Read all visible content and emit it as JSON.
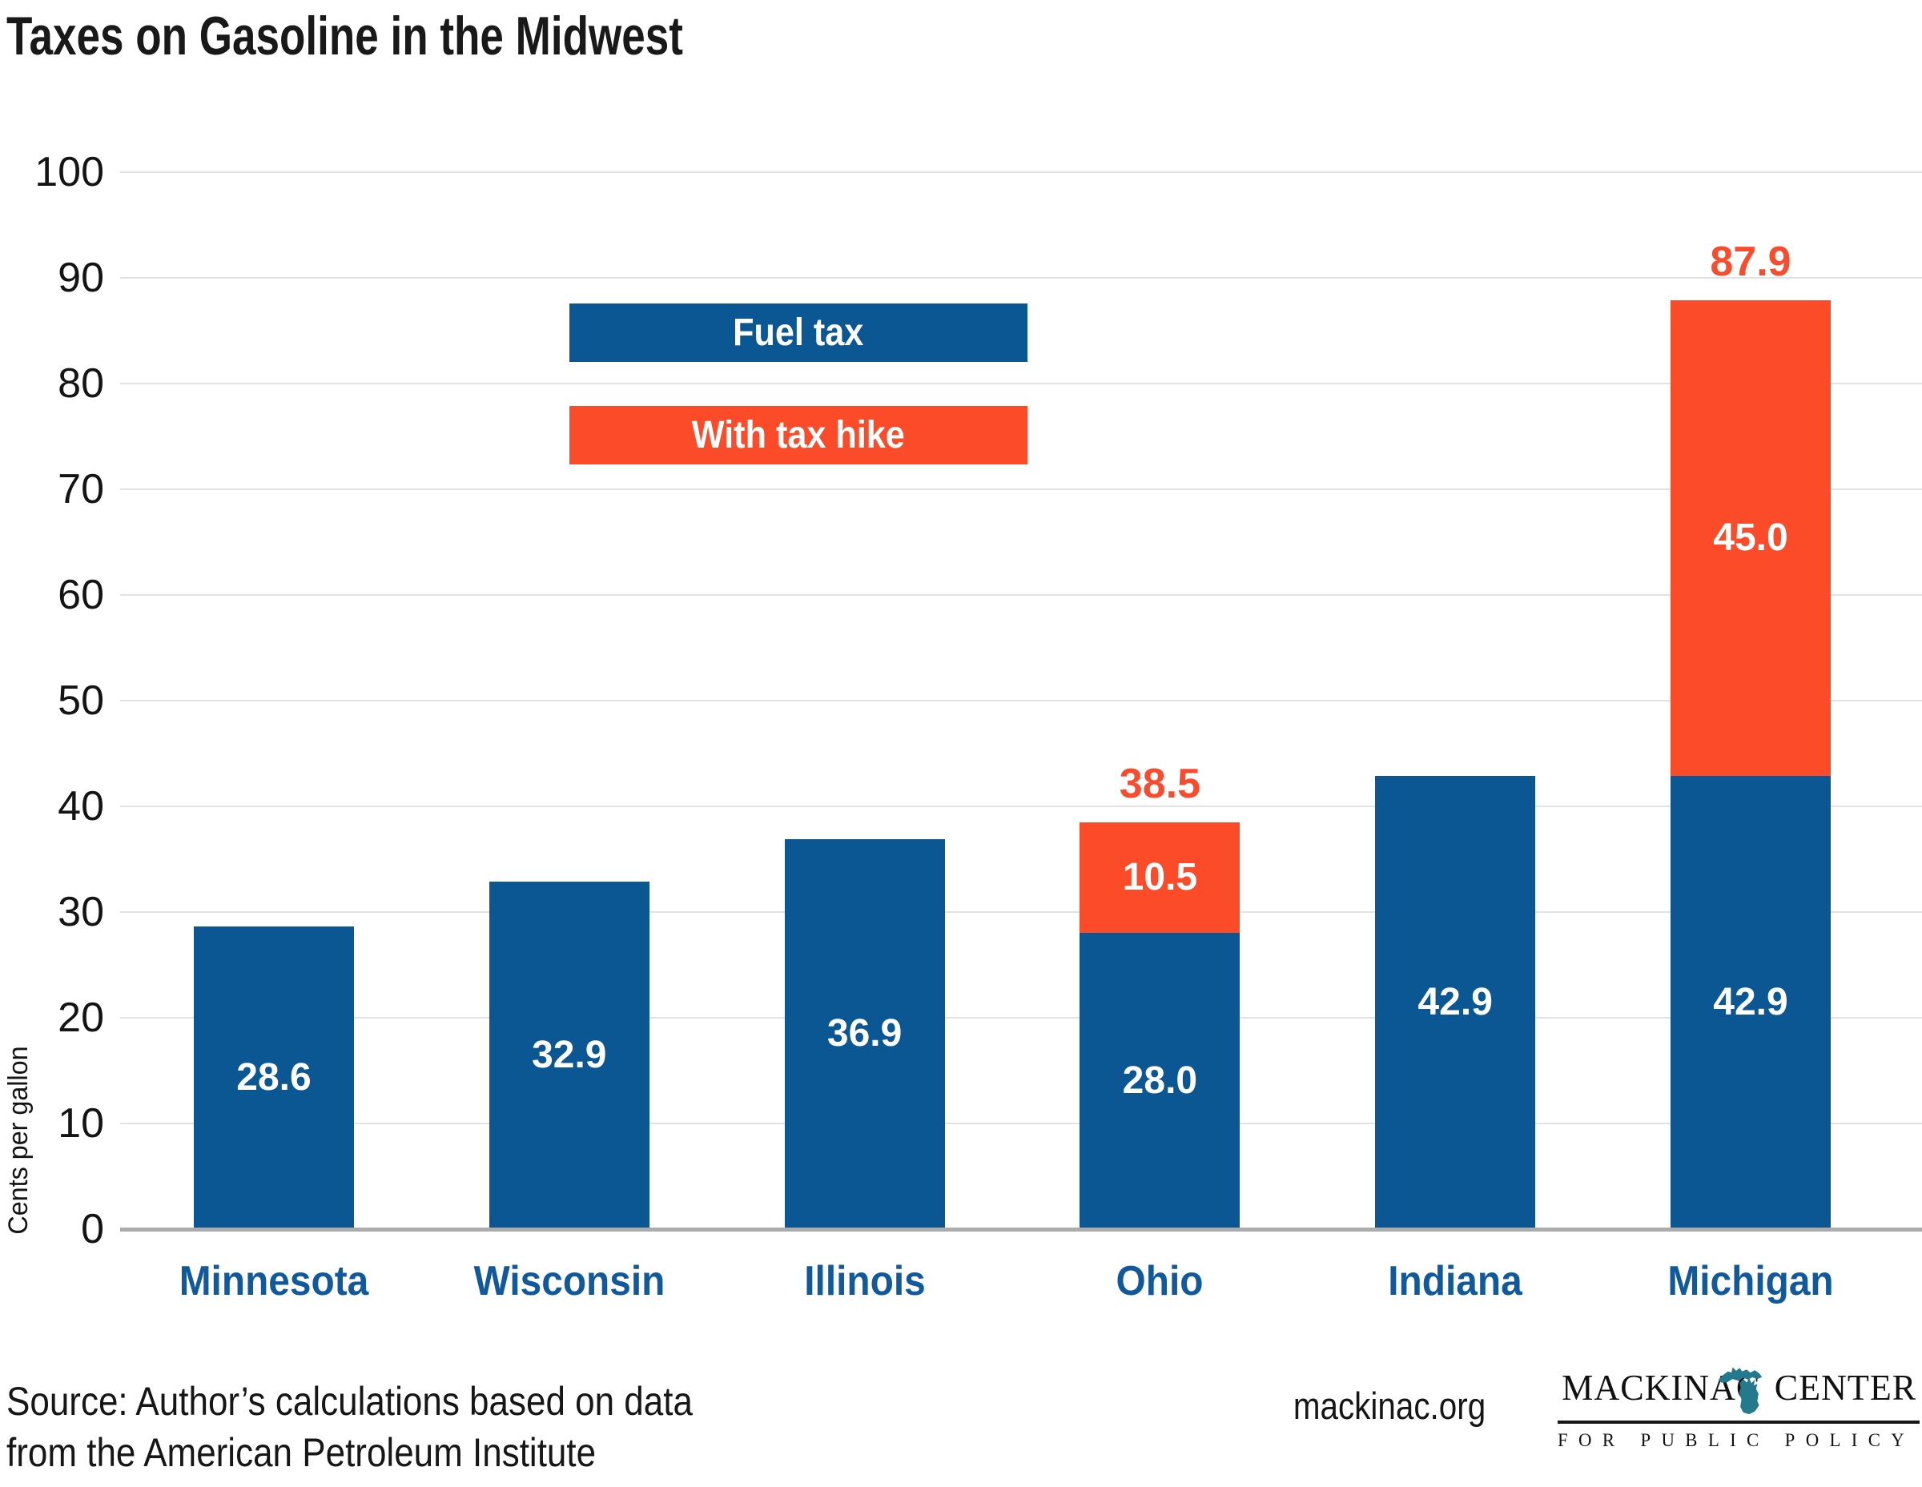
{
  "chart_data": {
    "type": "bar",
    "stacked": true,
    "title": "Taxes on Gasoline in the Midwest",
    "ylabel": "Cents per gallon",
    "ylim": [
      0,
      100
    ],
    "ytick_step": 10,
    "grid": true,
    "legend_position": "upper-left-inside",
    "categories": [
      "Minnesota",
      "Wisconsin",
      "Illinois",
      "Ohio",
      "Indiana",
      "Michigan"
    ],
    "series": [
      {
        "name": "Fuel tax",
        "color": "#0a5794",
        "values": [
          28.6,
          32.9,
          36.9,
          28.0,
          42.9,
          42.9
        ],
        "labels": [
          "28.6",
          "32.9",
          "36.9",
          "28.0",
          "42.9",
          "42.9"
        ]
      },
      {
        "name": "With tax hike",
        "color": "#fb4b28",
        "values": [
          0,
          0,
          0,
          10.5,
          0,
          45.0
        ],
        "labels": [
          "",
          "",
          "",
          "10.5",
          "",
          "45.0"
        ]
      }
    ],
    "stack_totals": [
      "",
      "",
      "",
      "38.5",
      "",
      "87.9"
    ],
    "yticks": [
      0,
      10,
      20,
      30,
      40,
      50,
      60,
      70,
      80,
      90,
      100
    ]
  },
  "legend": {
    "fuel_tax": "Fuel tax",
    "with_tax_hike": "With tax hike"
  },
  "colors": {
    "bar_blue": "#0a5794",
    "bar_orange": "#fb4b28",
    "state_label_blue": "#10599c",
    "total_label_orange": "#f94c2c",
    "gridline": "#e2e2e2",
    "axis_line": "#acacac",
    "michigan_icon_teal": "#24798c"
  },
  "footer": {
    "source_line1": "Source: Author’s calculations based on data",
    "source_line2": "from the American Petroleum Institute",
    "website": "mackinac.org",
    "logo": {
      "word_left": "MACKINAC",
      "word_right": "CENTER",
      "subtitle": "FOR PUBLIC POLICY"
    }
  }
}
